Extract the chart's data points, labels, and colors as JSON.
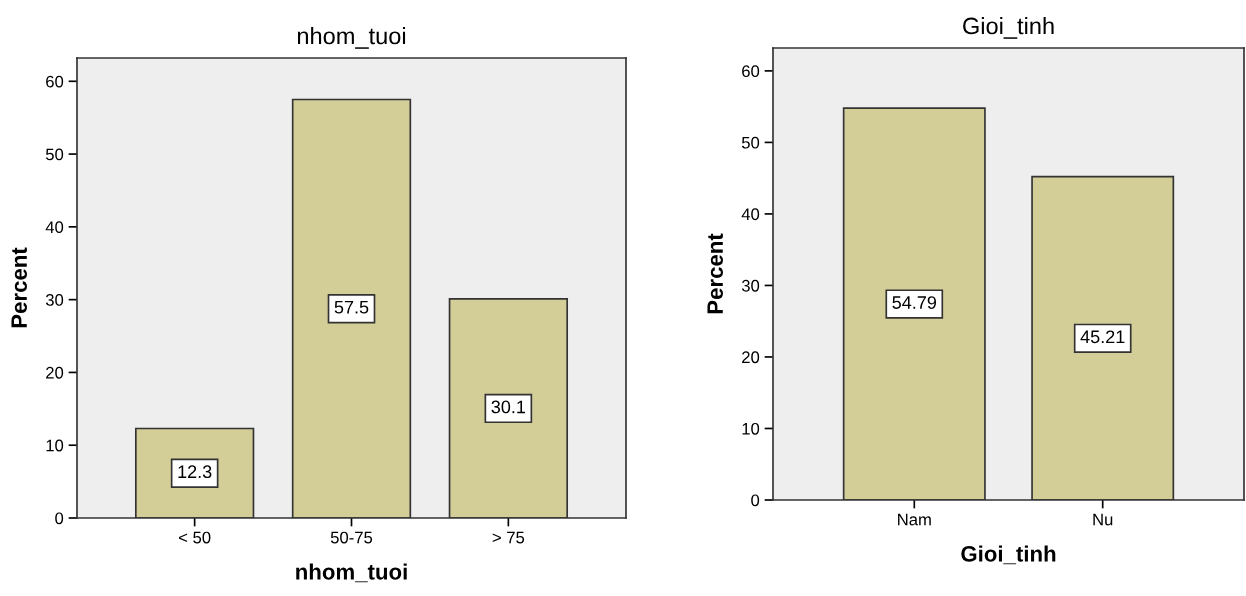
{
  "chart_data": [
    {
      "type": "bar",
      "title": "nhom_tuoi",
      "xlabel": "nhom_tuoi",
      "ylabel": "Percent",
      "categories": [
        "< 50",
        "50-75",
        "> 75"
      ],
      "values": [
        12.3,
        57.5,
        30.1
      ],
      "color": "#d3cd98",
      "ylim": [
        0,
        63.2
      ],
      "yticks": [
        0,
        10,
        20,
        30,
        40,
        50,
        60
      ],
      "data_labels": true,
      "grid": false,
      "legend": false
    },
    {
      "type": "bar",
      "title": "Gioi_tinh",
      "xlabel": "Gioi_tinh",
      "ylabel": "Percent",
      "categories": [
        "Nam",
        "Nu"
      ],
      "values": [
        54.79,
        45.21
      ],
      "color": "#d3cd98",
      "ylim": [
        0,
        63.2
      ],
      "yticks": [
        0,
        10,
        20,
        30,
        40,
        50,
        60
      ],
      "data_labels": true,
      "grid": false,
      "legend": false
    }
  ]
}
